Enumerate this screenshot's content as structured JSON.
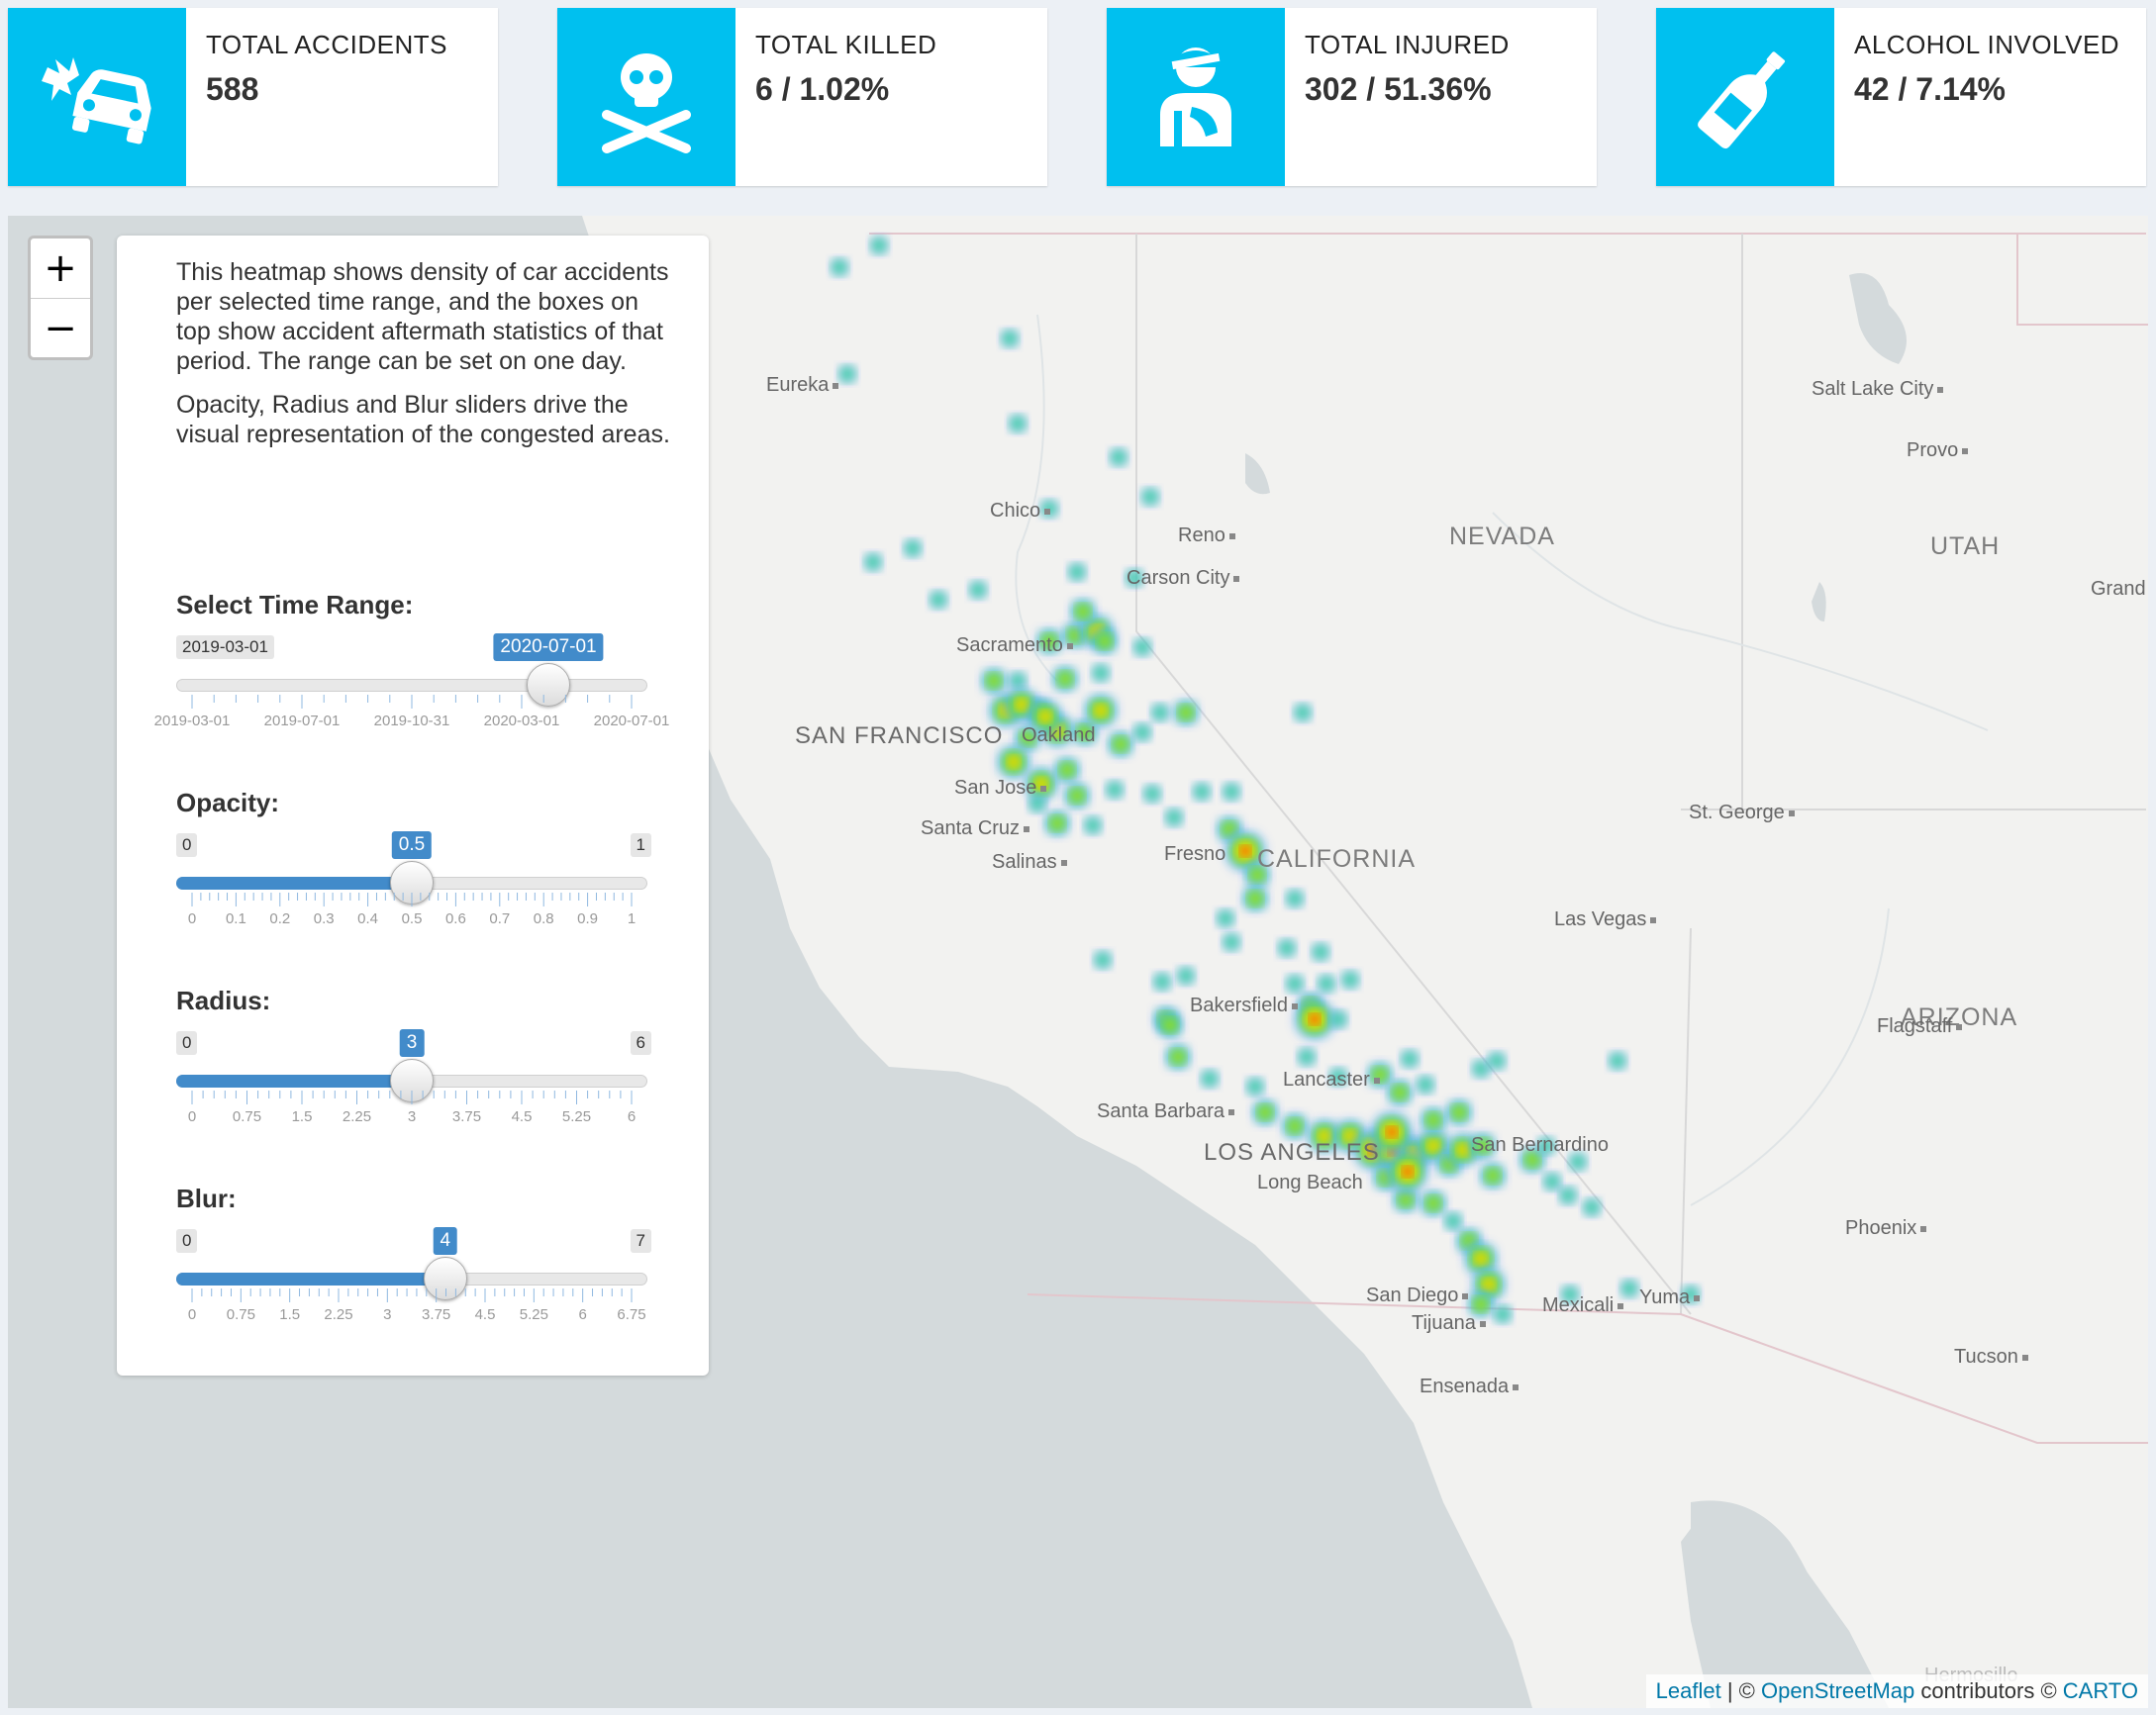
{
  "stats": [
    {
      "title": "TOTAL ACCIDENTS",
      "value": "588",
      "icon": "car-crash-icon"
    },
    {
      "title": "TOTAL KILLED",
      "value": "6 / 1.02%",
      "icon": "skull-crossbones-icon"
    },
    {
      "title": "TOTAL INJURED",
      "value": "302 / 51.36%",
      "icon": "injured-person-icon"
    },
    {
      "title": "ALCOHOL INVOLVED",
      "value": "42 / 7.14%",
      "icon": "wine-bottle-icon"
    }
  ],
  "panel": {
    "desc1": "This heatmap shows density of car accidents per selected time range, and the boxes on top show accident aftermath statistics of that period. The range can be set on one day.",
    "desc2": "Opacity, Radius and Blur sliders drive the visual representation of the congested areas."
  },
  "sliders": {
    "time": {
      "label": "Select Time Range:",
      "min": "2019-03-01",
      "current": "2020-07-01",
      "fraction": 0.79,
      "ticks": [
        "2019-03-01",
        "2019-07-01",
        "2019-10-31",
        "2020-03-01",
        "2020-07-01"
      ]
    },
    "opacity": {
      "label": "Opacity:",
      "min": "0",
      "max": "1",
      "current": "0.5",
      "fraction": 0.5,
      "ticks": [
        "0",
        "0.1",
        "0.2",
        "0.3",
        "0.4",
        "0.5",
        "0.6",
        "0.7",
        "0.8",
        "0.9",
        "1"
      ]
    },
    "radius": {
      "label": "Radius:",
      "min": "0",
      "max": "6",
      "current": "3",
      "fraction": 0.5,
      "ticks": [
        "0",
        "0.75",
        "1.5",
        "2.25",
        "3",
        "3.75",
        "4.5",
        "5.25",
        "6"
      ]
    },
    "blur": {
      "label": "Blur:",
      "min": "0",
      "max": "7",
      "current": "4",
      "fraction": 0.571,
      "ticks": [
        "0",
        "0.75",
        "1.5",
        "2.25",
        "3",
        "3.75",
        "4.5",
        "5.25",
        "6",
        "6.75"
      ]
    }
  },
  "map": {
    "zoom_in": "+",
    "zoom_out": "−",
    "states": [
      "NEVADA",
      "UTAH",
      "CALIFORNIA",
      "ARIZONA"
    ],
    "big_cities": [
      "SAN FRANCISCO",
      "LOS ANGELES"
    ],
    "cities": [
      "Eureka",
      "Chico",
      "Reno",
      "Carson City",
      "Sacramento",
      "Oakland",
      "San Jose",
      "Santa Cruz",
      "Salinas",
      "Fresno",
      "Bakersfield",
      "Lancaster",
      "Santa Barbara",
      "Long Beach",
      "San Bernardino",
      "San Diego",
      "Tijuana",
      "Mexicali",
      "Yuma",
      "Ensenada",
      "Salt Lake City",
      "Provo",
      "St. George",
      "Las Vegas",
      "Flagstaff",
      "Phoenix",
      "Tucson",
      "Grand",
      "Hermosillo"
    ],
    "attribution": {
      "leaflet": "Leaflet",
      "sep": " | © ",
      "osm": "OpenStreetMap",
      "contrib": " contributors © ",
      "carto": "CARTO"
    }
  },
  "colors": {
    "accent": "#00c0ef",
    "slider": "#428bca"
  }
}
